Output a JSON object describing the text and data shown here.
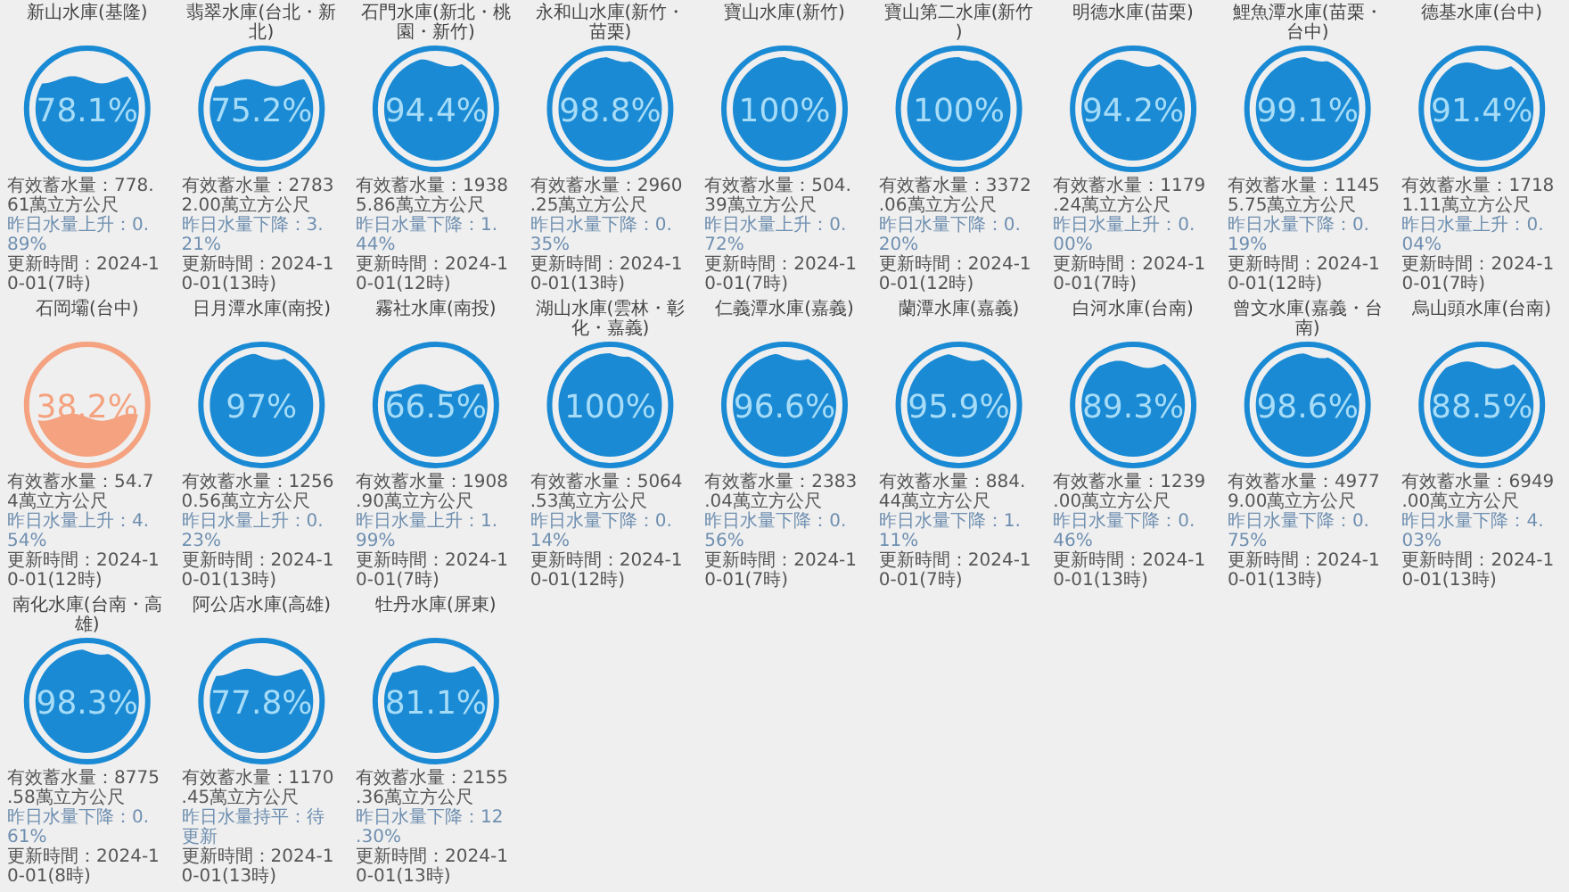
{
  "chart_data": [
    {
      "type": "other",
      "title": "新山水庫(基隆)",
      "values": [
        78.1
      ],
      "value_labels": [
        "78.1%"
      ],
      "colors": [
        "#1a8ad4"
      ],
      "annotations": [
        "有效蓄水量：778.61萬立方公尺",
        "昨日水量上升：0.89%",
        "更新時間：2024-10-01(7時)"
      ]
    },
    {
      "type": "other",
      "title": "翡翠水庫(台北・新北)",
      "values": [
        75.2
      ],
      "value_labels": [
        "75.2%"
      ],
      "colors": [
        "#1a8ad4"
      ],
      "annotations": [
        "有效蓄水量：27832.00萬立方公尺",
        "昨日水量下降：3.21%",
        "更新時間：2024-10-01(13時)"
      ]
    },
    {
      "type": "other",
      "title": "石門水庫(新北・桃園・新竹)",
      "values": [
        94.4
      ],
      "value_labels": [
        "94.4%"
      ],
      "colors": [
        "#1a8ad4"
      ],
      "annotations": [
        "有效蓄水量：19385.86萬立方公尺",
        "昨日水量下降：1.44%",
        "更新時間：2024-10-01(12時)"
      ]
    },
    {
      "type": "other",
      "title": "永和山水庫(新竹・苗栗)",
      "values": [
        98.8
      ],
      "value_labels": [
        "98.8%"
      ],
      "colors": [
        "#1a8ad4"
      ],
      "annotations": [
        "有效蓄水量：2960.25萬立方公尺",
        "昨日水量下降：0.35%",
        "更新時間：2024-10-01(13時)"
      ]
    },
    {
      "type": "other",
      "title": "寶山水庫(新竹)",
      "values": [
        100
      ],
      "value_labels": [
        "100%"
      ],
      "colors": [
        "#1a8ad4"
      ],
      "annotations": [
        "有效蓄水量：504.39萬立方公尺",
        "昨日水量上升：0.72%",
        "更新時間：2024-10-01(7時)"
      ]
    },
    {
      "type": "other",
      "title": "寶山第二水庫(新竹)",
      "values": [
        100
      ],
      "value_labels": [
        "100%"
      ],
      "colors": [
        "#1a8ad4"
      ],
      "annotations": [
        "有效蓄水量：3372.06萬立方公尺",
        "昨日水量下降：0.20%",
        "更新時間：2024-10-01(12時)"
      ]
    },
    {
      "type": "other",
      "title": "明德水庫(苗栗)",
      "values": [
        94.2
      ],
      "value_labels": [
        "94.2%"
      ],
      "colors": [
        "#1a8ad4"
      ],
      "annotations": [
        "有效蓄水量：1179.24萬立方公尺",
        "昨日水量上升：0.00%",
        "更新時間：2024-10-01(7時)"
      ]
    },
    {
      "type": "other",
      "title": "鯉魚潭水庫(苗栗・台中)",
      "values": [
        99.1
      ],
      "value_labels": [
        "99.1%"
      ],
      "colors": [
        "#1a8ad4"
      ],
      "annotations": [
        "有效蓄水量：11455.75萬立方公尺",
        "昨日水量下降：0.19%",
        "更新時間：2024-10-01(12時)"
      ]
    },
    {
      "type": "other",
      "title": "德基水庫(台中)",
      "values": [
        91.4
      ],
      "value_labels": [
        "91.4%"
      ],
      "colors": [
        "#1a8ad4"
      ],
      "annotations": [
        "有效蓄水量：17181.11萬立方公尺",
        "昨日水量上升：0.04%",
        "更新時間：2024-10-01(7時)"
      ]
    },
    {
      "type": "other",
      "title": "石岡壩(台中)",
      "values": [
        38.2
      ],
      "value_labels": [
        "38.2%"
      ],
      "colors": [
        "#f4a27f"
      ],
      "annotations": [
        "有效蓄水量：54.74萬立方公尺",
        "昨日水量上升：4.54%",
        "更新時間：2024-10-01(12時)"
      ]
    },
    {
      "type": "other",
      "title": "日月潭水庫(南投)",
      "values": [
        97
      ],
      "value_labels": [
        "97%"
      ],
      "colors": [
        "#1a8ad4"
      ],
      "annotations": [
        "有效蓄水量：12560.56萬立方公尺",
        "昨日水量上升：0.23%",
        "更新時間：2024-10-01(13時)"
      ]
    },
    {
      "type": "other",
      "title": "霧社水庫(南投)",
      "values": [
        66.5
      ],
      "value_labels": [
        "66.5%"
      ],
      "colors": [
        "#1a8ad4"
      ],
      "annotations": [
        "有效蓄水量：1908.90萬立方公尺",
        "昨日水量上升：1.99%",
        "更新時間：2024-10-01(7時)"
      ]
    },
    {
      "type": "other",
      "title": "湖山水庫(雲林・彰化・嘉義)",
      "values": [
        100
      ],
      "value_labels": [
        "100%"
      ],
      "colors": [
        "#1a8ad4"
      ],
      "annotations": [
        "有效蓄水量：5064.53萬立方公尺",
        "昨日水量下降：0.14%",
        "更新時間：2024-10-01(12時)"
      ]
    },
    {
      "type": "other",
      "title": "仁義潭水庫(嘉義)",
      "values": [
        96.6
      ],
      "value_labels": [
        "96.6%"
      ],
      "colors": [
        "#1a8ad4"
      ],
      "annotations": [
        "有效蓄水量：2383.04萬立方公尺",
        "昨日水量下降：0.56%",
        "更新時間：2024-10-01(7時)"
      ]
    },
    {
      "type": "other",
      "title": "蘭潭水庫(嘉義)",
      "values": [
        95.9
      ],
      "value_labels": [
        "95.9%"
      ],
      "colors": [
        "#1a8ad4"
      ],
      "annotations": [
        "有效蓄水量：884.44萬立方公尺",
        "昨日水量下降：1.11%",
        "更新時間：2024-10-01(7時)"
      ]
    },
    {
      "type": "other",
      "title": "白河水庫(台南)",
      "values": [
        89.3
      ],
      "value_labels": [
        "89.3%"
      ],
      "colors": [
        "#1a8ad4"
      ],
      "annotations": [
        "有效蓄水量：1239.00萬立方公尺",
        "昨日水量下降：0.46%",
        "更新時間：2024-10-01(13時)"
      ]
    },
    {
      "type": "other",
      "title": "曾文水庫(嘉義・台南)",
      "values": [
        98.6
      ],
      "value_labels": [
        "98.6%"
      ],
      "colors": [
        "#1a8ad4"
      ],
      "annotations": [
        "有效蓄水量：49779.00萬立方公尺",
        "昨日水量下降：0.75%",
        "更新時間：2024-10-01(13時)"
      ]
    },
    {
      "type": "other",
      "title": "烏山頭水庫(台南)",
      "values": [
        88.5
      ],
      "value_labels": [
        "88.5%"
      ],
      "colors": [
        "#1a8ad4"
      ],
      "annotations": [
        "有效蓄水量：6949.00萬立方公尺",
        "昨日水量下降：4.03%",
        "更新時間：2024-10-01(13時)"
      ]
    },
    {
      "type": "other",
      "title": "南化水庫(台南・高雄)",
      "values": [
        98.3
      ],
      "value_labels": [
        "98.3%"
      ],
      "colors": [
        "#1a8ad4"
      ],
      "annotations": [
        "有效蓄水量：8775.58萬立方公尺",
        "昨日水量下降：0.61%",
        "更新時間：2024-10-01(8時)"
      ]
    },
    {
      "type": "other",
      "title": "阿公店水庫(高雄)",
      "values": [
        77.8
      ],
      "value_labels": [
        "77.8%"
      ],
      "colors": [
        "#1a8ad4"
      ],
      "annotations": [
        "有效蓄水量：1170.45萬立方公尺",
        "昨日水量持平：待更新",
        "更新時間：2024-10-01(13時)"
      ]
    },
    {
      "type": "other",
      "title": "牡丹水庫(屏東)",
      "values": [
        81.1
      ],
      "value_labels": [
        "81.1%"
      ],
      "colors": [
        "#1a8ad4"
      ],
      "annotations": [
        "有效蓄水量：2155.36萬立方公尺",
        "昨日水量下降：12.30%",
        "更新時間：2024-10-01(13時)"
      ]
    }
  ]
}
